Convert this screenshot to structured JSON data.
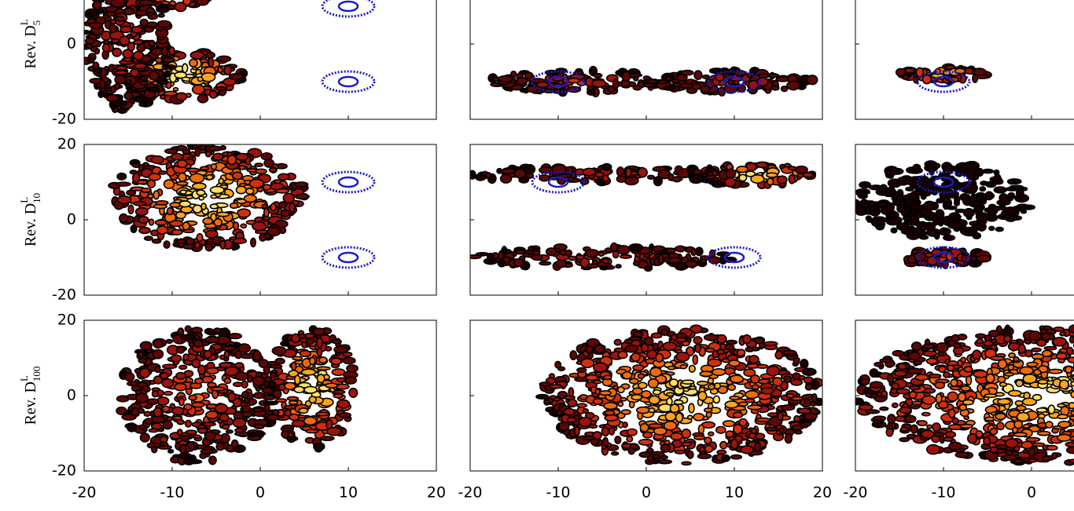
{
  "chart_data": {
    "type": "density-grid",
    "xlim": [
      -20,
      20
    ],
    "ylim": [
      -20,
      20
    ],
    "xticks": [
      -20,
      -10,
      0,
      10,
      20
    ],
    "yticks": [
      -20,
      0,
      20
    ],
    "row_labels": [
      {
        "text": "Rev. D",
        "sub": "5",
        "sup": "L"
      },
      {
        "text": "Rev. D",
        "sub": "10",
        "sup": "L"
      },
      {
        "text": "Rev. D",
        "sub": "100",
        "sup": "L"
      }
    ],
    "ellipse_color": "#1a1acc",
    "panels": [
      {
        "ellipses": [
          [
            10,
            10
          ],
          [
            10,
            -10
          ]
        ]
      },
      {
        "ellipses": [
          [
            -10,
            -10
          ],
          [
            10,
            -10
          ]
        ]
      },
      {
        "ellipses": [
          [
            -10,
            -10
          ]
        ]
      },
      {
        "ellipses": [
          [
            10,
            10
          ],
          [
            10,
            -10
          ]
        ]
      },
      {
        "ellipses": [
          [
            -10,
            10
          ],
          [
            10,
            -10
          ]
        ]
      },
      {
        "ellipses": [
          [
            -10,
            10
          ],
          [
            -10,
            -10
          ]
        ]
      },
      {
        "ellipses": []
      },
      {
        "ellipses": []
      },
      {
        "ellipses": []
      }
    ]
  }
}
